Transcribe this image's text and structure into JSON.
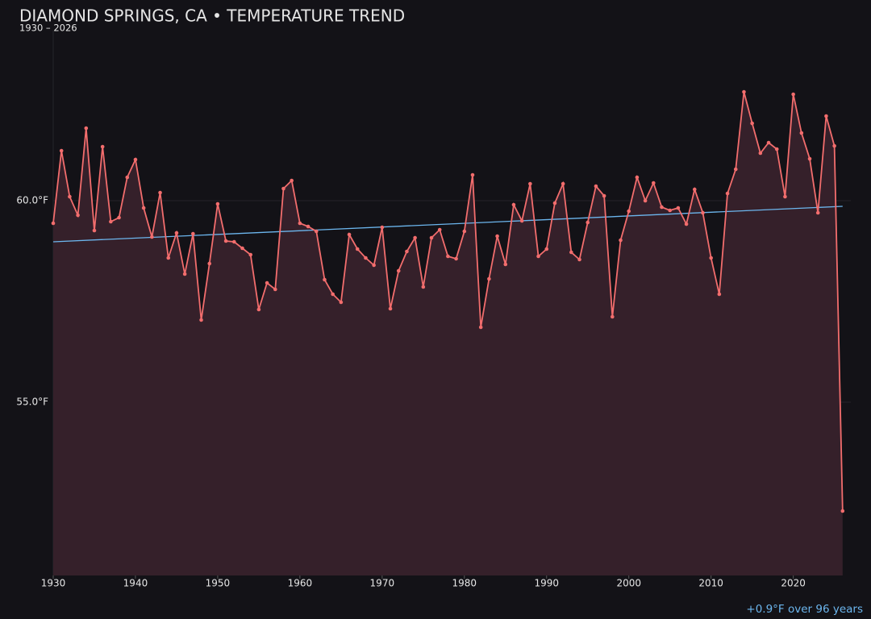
{
  "chart_data": {
    "type": "line",
    "title": "DIAMOND SPRINGS, CA • TEMPERATURE TREND",
    "subtitle": "1930 – 2026",
    "annotation": "+0.9°F over 96 years",
    "x": [
      1930,
      1931,
      1932,
      1933,
      1934,
      1935,
      1936,
      1937,
      1938,
      1939,
      1940,
      1941,
      1942,
      1943,
      1944,
      1945,
      1946,
      1947,
      1948,
      1949,
      1950,
      1951,
      1952,
      1953,
      1954,
      1955,
      1956,
      1957,
      1958,
      1959,
      1960,
      1961,
      1962,
      1963,
      1964,
      1965,
      1966,
      1967,
      1968,
      1969,
      1970,
      1971,
      1972,
      1973,
      1974,
      1975,
      1976,
      1977,
      1978,
      1979,
      1980,
      1981,
      1982,
      1983,
      1984,
      1985,
      1986,
      1987,
      1988,
      1989,
      1990,
      1991,
      1992,
      1993,
      1994,
      1995,
      1996,
      1997,
      1998,
      1999,
      2000,
      2001,
      2002,
      2003,
      2004,
      2005,
      2006,
      2007,
      2008,
      2009,
      2010,
      2011,
      2012,
      2013,
      2014,
      2015,
      2016,
      2017,
      2018,
      2019,
      2020,
      2021,
      2022,
      2023,
      2024,
      2025,
      2026
    ],
    "values": [
      59.44,
      61.24,
      60.1,
      59.64,
      61.8,
      59.26,
      61.34,
      59.48,
      59.58,
      60.58,
      61.02,
      59.82,
      59.1,
      60.2,
      58.58,
      59.2,
      58.18,
      59.18,
      57.04,
      58.44,
      59.92,
      59.0,
      58.98,
      58.82,
      58.66,
      57.3,
      57.96,
      57.8,
      60.3,
      60.5,
      59.44,
      59.36,
      59.24,
      58.04,
      57.68,
      57.48,
      59.16,
      58.8,
      58.58,
      58.4,
      59.34,
      57.32,
      58.26,
      58.74,
      59.08,
      57.86,
      59.08,
      59.28,
      58.62,
      58.56,
      59.24,
      60.64,
      56.86,
      58.06,
      59.12,
      58.42,
      59.9,
      59.5,
      60.42,
      58.62,
      58.8,
      59.94,
      60.42,
      58.72,
      58.54,
      59.46,
      60.36,
      60.12,
      57.12,
      59.02,
      59.74,
      60.58,
      60.0,
      60.44,
      59.84,
      59.76,
      59.82,
      59.42,
      60.28,
      59.7,
      58.58,
      57.68,
      60.18,
      60.78,
      62.7,
      61.92,
      61.18,
      61.44,
      61.28,
      60.1,
      62.64,
      61.68,
      61.04,
      59.7,
      62.1,
      61.36,
      52.3
    ],
    "color": "#f26d6d",
    "area_color": "#35202a",
    "trend": {
      "x": [
        1930,
        2026
      ],
      "values": [
        58.98,
        59.86
      ],
      "color": "#6cb6ee"
    },
    "xlim": [
      1930,
      2027
    ],
    "ylim": [
      50.7,
      64.22
    ],
    "xticks": [
      1930,
      1940,
      1950,
      1960,
      1970,
      1980,
      1990,
      2000,
      2010,
      2020
    ],
    "yticks": [
      {
        "value": 55,
        "label": "55.0°F"
      },
      {
        "value": 60,
        "label": "60.0°F"
      }
    ],
    "grid": true
  }
}
